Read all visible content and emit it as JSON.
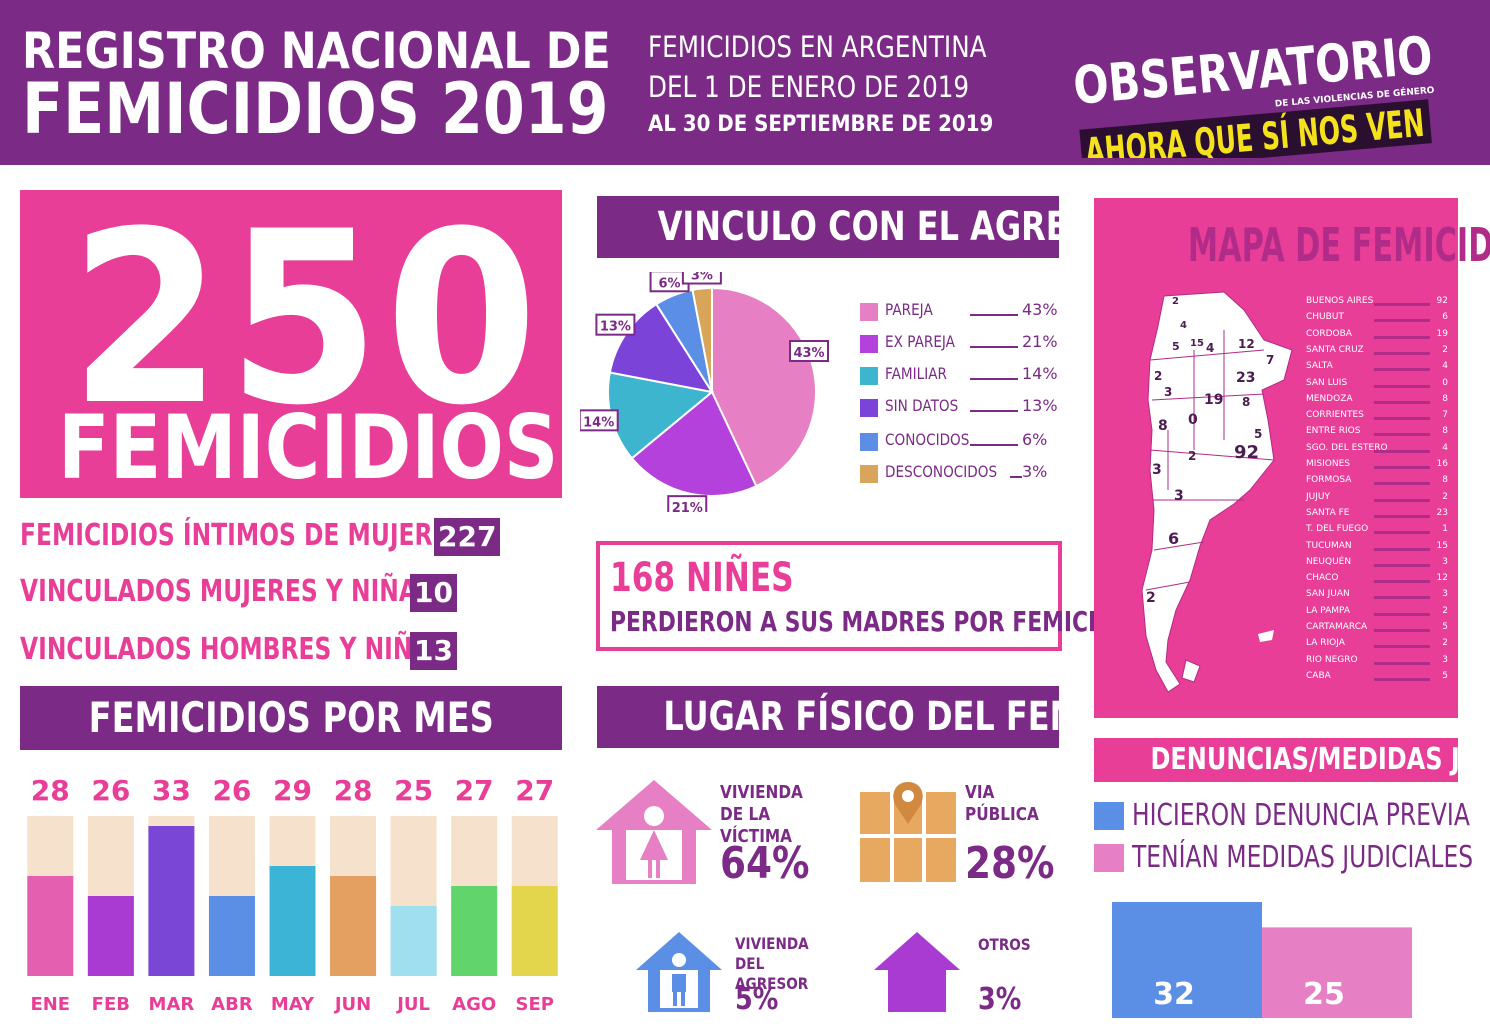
{
  "header": {
    "title_line1": "REGISTRO NACIONAL DE",
    "title_line2": "FEMICIDIOS 2019",
    "subtitle_line1": "FEMICIDIOS EN ARGENTINA",
    "subtitle_line2": "DEL 1 DE ENERO DE 2019",
    "subtitle_line3": "AL 30 DE SEPTIEMBRE DE 2019",
    "logo_line1": "OBSERVATORIO",
    "logo_line2": "DE LAS VIOLENCIAS DE GÉNERO",
    "logo_line3": "AHORA QUE SÍ NOS VEN"
  },
  "total": {
    "number": "250",
    "label": "FEMICIDIOS"
  },
  "breakdown": [
    {
      "label": "FEMICIDIOS ÍNTIMOS DE MUJERES",
      "value": "227"
    },
    {
      "label": "VINCULADOS MUJERES Y NIÑAS",
      "value": "10"
    },
    {
      "label": "VINCULADOS HOMBRES Y NIÑOS",
      "value": "13"
    }
  ],
  "por_mes": {
    "title": "FEMICIDIOS POR MES"
  },
  "vinculo": {
    "title": "VINCULO CON EL AGRESOR"
  },
  "ninos": {
    "number": "168 NIÑES",
    "text": "PERDIERON A SUS MADRES POR FEMICIDIO"
  },
  "lugar": {
    "title": "LUGAR FÍSICO DEL FEMICIDIO",
    "items": [
      {
        "label": "VIVIENDA DE LA VÍCTIMA",
        "value": "64%"
      },
      {
        "label": "VIA PÚBLICA",
        "value": "28%"
      },
      {
        "label": "VIVIENDA DEL AGRESOR",
        "value": "5%"
      },
      {
        "label": "OTROS",
        "value": "3%"
      }
    ]
  },
  "mapa": {
    "title": "MAPA DE FEMICIDIOS",
    "provinces": [
      {
        "name": "BUENOS AIRES",
        "value": "92"
      },
      {
        "name": "CHUBUT",
        "value": "6"
      },
      {
        "name": "CORDOBA",
        "value": "19"
      },
      {
        "name": "SANTA CRUZ",
        "value": "2"
      },
      {
        "name": "SALTA",
        "value": "4"
      },
      {
        "name": "SAN LUIS",
        "value": "0"
      },
      {
        "name": "MENDOZA",
        "value": "8"
      },
      {
        "name": "CORRIENTES",
        "value": "7"
      },
      {
        "name": "ENTRE RIOS",
        "value": "8"
      },
      {
        "name": "SGO. DEL ESTERO",
        "value": "4"
      },
      {
        "name": "MISIONES",
        "value": "16"
      },
      {
        "name": "FORMOSA",
        "value": "8"
      },
      {
        "name": "JUJUY",
        "value": "2"
      },
      {
        "name": "SANTA FE",
        "value": "23"
      },
      {
        "name": "T. DEL FUEGO",
        "value": "1"
      },
      {
        "name": "TUCUMAN",
        "value": "15"
      },
      {
        "name": "NEUQUÉN",
        "value": "3"
      },
      {
        "name": "CHACO",
        "value": "12"
      },
      {
        "name": "SAN JUAN",
        "value": "3"
      },
      {
        "name": "LA PAMPA",
        "value": "2"
      },
      {
        "name": "CARTAMARCA",
        "value": "5"
      },
      {
        "name": "LA RIOJA",
        "value": "2"
      },
      {
        "name": "RIO NEGRO",
        "value": "3"
      },
      {
        "name": "CABA",
        "value": "5"
      }
    ],
    "map_labels": [
      "2",
      "4",
      "5",
      "15",
      "4",
      "12",
      "7",
      "2",
      "23",
      "3",
      "19",
      "8",
      "8",
      "0",
      "5",
      "2",
      "92",
      "3",
      "3",
      "6",
      "2"
    ]
  },
  "denuncias": {
    "title": "DENUNCIAS/MEDIDAS JUDICIALES",
    "legend1": "HICIERON DENUNCIA PREVIA",
    "legend2": "TENÍAN MEDIDAS JUDICIALES"
  },
  "colors": {
    "purple": "#7b2a86",
    "pink": "#e83e98",
    "map_pink": "#e83e98",
    "logo_yellow": "#f4e21c",
    "beige": "#f5e1cc"
  },
  "chart_data": [
    {
      "type": "bar",
      "title": "FEMICIDIOS POR MES",
      "categories": [
        "ENE",
        "FEB",
        "MAR",
        "ABR",
        "MAY",
        "JUN",
        "JUL",
        "AGO",
        "SEP"
      ],
      "values": [
        28,
        26,
        33,
        26,
        29,
        28,
        25,
        27,
        27
      ],
      "colors": [
        "#e55fb0",
        "#a93bd3",
        "#7a46d6",
        "#5b8fe6",
        "#3bb4d6",
        "#e4a060",
        "#9fdff0",
        "#62d46c",
        "#e3d54c"
      ],
      "ylim": [
        18,
        34
      ]
    },
    {
      "type": "pie",
      "title": "VINCULO CON EL AGRESOR",
      "categories": [
        "PAREJA",
        "EX PAREJA",
        "FAMILIAR",
        "SIN DATOS",
        "CONOCIDOS",
        "DESCONOCIDOS"
      ],
      "values": [
        43,
        21,
        14,
        13,
        6,
        3
      ],
      "labels": [
        "43%",
        "21%",
        "14%",
        "13%",
        "6%",
        "3%"
      ],
      "colors": [
        "#e67fc4",
        "#b441dc",
        "#3db5cf",
        "#7b43d8",
        "#5b8fe6",
        "#d9a55a"
      ]
    },
    {
      "type": "bar",
      "title": "DENUNCIAS/MEDIDAS JUDICIALES",
      "categories": [
        "HICIERON DENUNCIA PREVIA",
        "TENÍAN MEDIDAS JUDICIALES"
      ],
      "values": [
        32,
        25
      ],
      "colors": [
        "#5b8fe6",
        "#e67fc4"
      ]
    }
  ]
}
